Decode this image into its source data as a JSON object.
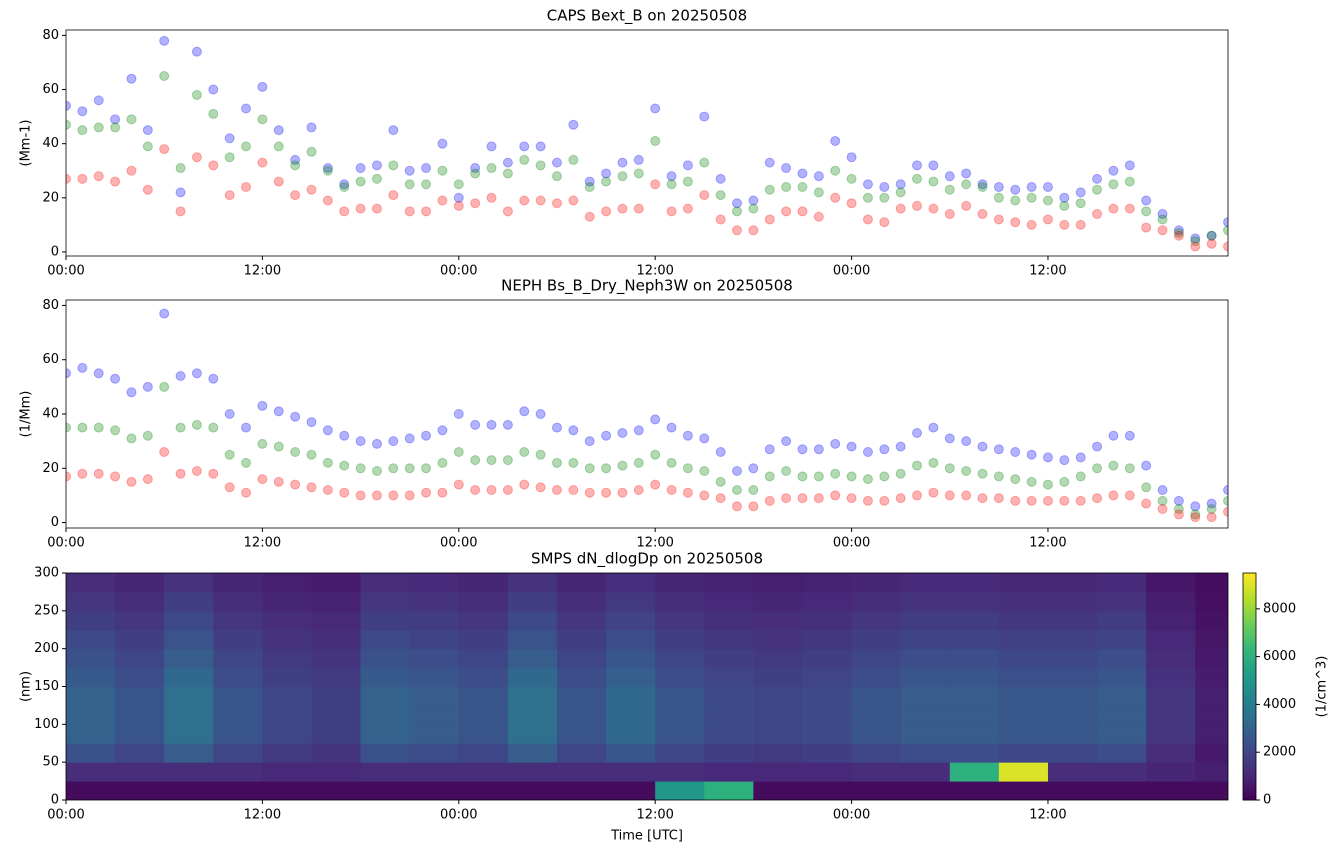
{
  "chart_data": [
    {
      "type": "scatter",
      "title": "CAPS Bext_B on 20250508",
      "ylabel": "(Mm-1)",
      "x": [
        0,
        1,
        2,
        3,
        4,
        5,
        6,
        7,
        8,
        9,
        10,
        11,
        12,
        13,
        14,
        15,
        16,
        17,
        18,
        19,
        20,
        21,
        22,
        23,
        24,
        25,
        26,
        27,
        28,
        29,
        30,
        31,
        32,
        33,
        34,
        35,
        36,
        37,
        38,
        39,
        40,
        41,
        42,
        43,
        44,
        45,
        46,
        47,
        48,
        49,
        50,
        51,
        52,
        53,
        54,
        55,
        56,
        57,
        58,
        59,
        60,
        61,
        62,
        63,
        64,
        65,
        66,
        67,
        68,
        69,
        70,
        71
      ],
      "series": [
        {
          "color": "#0000ff",
          "values": [
            54,
            52,
            56,
            49,
            64,
            45,
            78,
            22,
            74,
            60,
            42,
            53,
            61,
            45,
            34,
            46,
            31,
            25,
            31,
            32,
            45,
            30,
            31,
            40,
            20,
            31,
            39,
            33,
            39,
            39,
            33,
            47,
            26,
            29,
            33,
            34,
            53,
            28,
            32,
            50,
            27,
            18,
            19,
            33,
            31,
            29,
            28,
            41,
            35,
            25,
            24,
            25,
            32,
            32,
            28,
            29,
            25,
            24,
            23,
            24,
            24,
            20,
            22,
            27,
            30,
            32,
            19,
            14,
            8,
            5,
            6,
            11
          ]
        },
        {
          "color": "#008000",
          "values": [
            47,
            45,
            46,
            46,
            49,
            39,
            65,
            31,
            58,
            51,
            35,
            39,
            49,
            39,
            32,
            37,
            30,
            24,
            26,
            27,
            32,
            25,
            25,
            30,
            25,
            29,
            31,
            29,
            34,
            32,
            28,
            34,
            24,
            26,
            28,
            29,
            41,
            25,
            26,
            33,
            21,
            15,
            16,
            23,
            24,
            24,
            22,
            30,
            27,
            20,
            20,
            22,
            27,
            26,
            23,
            25,
            24,
            20,
            19,
            20,
            19,
            17,
            18,
            23,
            25,
            26,
            15,
            12,
            7,
            4,
            6,
            8
          ]
        },
        {
          "color": "#ff0000",
          "values": [
            27,
            27,
            28,
            26,
            30,
            23,
            38,
            15,
            35,
            32,
            21,
            24,
            33,
            26,
            21,
            23,
            19,
            15,
            16,
            16,
            21,
            15,
            15,
            19,
            17,
            18,
            20,
            15,
            19,
            19,
            18,
            19,
            13,
            15,
            16,
            16,
            25,
            15,
            16,
            21,
            12,
            8,
            8,
            12,
            15,
            15,
            13,
            20,
            18,
            12,
            11,
            16,
            17,
            16,
            14,
            17,
            14,
            12,
            11,
            10,
            12,
            10,
            10,
            14,
            16,
            16,
            9,
            8,
            6,
            2,
            3,
            2
          ]
        }
      ],
      "alpha": 0.3,
      "xlim": [
        0,
        71
      ],
      "ylim": [
        -1.5,
        82
      ],
      "yticks": [
        0,
        20,
        40,
        60,
        80
      ],
      "xticks": [
        {
          "value": 0,
          "label": "00:00"
        },
        {
          "value": 12,
          "label": "12:00"
        },
        {
          "value": 24,
          "label": "00:00"
        },
        {
          "value": 36,
          "label": "12:00"
        },
        {
          "value": 48,
          "label": "00:00"
        },
        {
          "value": 60,
          "label": "12:00"
        }
      ]
    },
    {
      "type": "scatter",
      "title": "NEPH Bs_B_Dry_Neph3W on 20250508",
      "ylabel": "(1/Mm)",
      "x": [
        0,
        1,
        2,
        3,
        4,
        5,
        6,
        7,
        8,
        9,
        10,
        11,
        12,
        13,
        14,
        15,
        16,
        17,
        18,
        19,
        20,
        21,
        22,
        23,
        24,
        25,
        26,
        27,
        28,
        29,
        30,
        31,
        32,
        33,
        34,
        35,
        36,
        37,
        38,
        39,
        40,
        41,
        42,
        43,
        44,
        45,
        46,
        47,
        48,
        49,
        50,
        51,
        52,
        53,
        54,
        55,
        56,
        57,
        58,
        59,
        60,
        61,
        62,
        63,
        64,
        65,
        66,
        67,
        68,
        69,
        70,
        71
      ],
      "series": [
        {
          "color": "#0000ff",
          "values": [
            55,
            57,
            55,
            53,
            48,
            50,
            77,
            54,
            55,
            53,
            40,
            35,
            43,
            41,
            39,
            37,
            34,
            32,
            30,
            29,
            30,
            31,
            32,
            34,
            40,
            36,
            36,
            36,
            41,
            40,
            35,
            34,
            30,
            32,
            33,
            34,
            38,
            35,
            32,
            31,
            26,
            19,
            20,
            27,
            30,
            27,
            27,
            29,
            28,
            26,
            27,
            28,
            33,
            35,
            31,
            30,
            28,
            27,
            26,
            25,
            24,
            23,
            24,
            28,
            32,
            32,
            21,
            12,
            8,
            6,
            7,
            12
          ]
        },
        {
          "color": "#008000",
          "values": [
            35,
            35,
            35,
            34,
            31,
            32,
            50,
            35,
            36,
            35,
            25,
            22,
            29,
            28,
            26,
            25,
            22,
            21,
            20,
            19,
            20,
            20,
            20,
            22,
            26,
            23,
            23,
            23,
            26,
            25,
            22,
            22,
            20,
            20,
            21,
            22,
            25,
            22,
            20,
            19,
            15,
            12,
            12,
            17,
            19,
            17,
            17,
            18,
            17,
            16,
            17,
            18,
            21,
            22,
            20,
            19,
            18,
            17,
            16,
            15,
            14,
            15,
            17,
            20,
            21,
            20,
            13,
            8,
            5,
            3,
            5,
            8
          ]
        },
        {
          "color": "#ff0000",
          "values": [
            17,
            18,
            18,
            17,
            15,
            16,
            26,
            18,
            19,
            18,
            13,
            11,
            16,
            15,
            14,
            13,
            12,
            11,
            10,
            10,
            10,
            10,
            11,
            11,
            14,
            12,
            12,
            12,
            14,
            13,
            12,
            12,
            11,
            11,
            11,
            12,
            14,
            12,
            11,
            10,
            9,
            6,
            6,
            8,
            9,
            9,
            9,
            10,
            9,
            8,
            8,
            9,
            10,
            11,
            10,
            10,
            9,
            9,
            8,
            8,
            8,
            8,
            8,
            9,
            10,
            10,
            7,
            5,
            3,
            2,
            2,
            4
          ]
        }
      ],
      "alpha": 0.3,
      "xlim": [
        0,
        71
      ],
      "ylim": [
        -2,
        82
      ],
      "yticks": [
        0,
        20,
        40,
        60,
        80
      ],
      "xticks": [
        {
          "value": 0,
          "label": "00:00"
        },
        {
          "value": 12,
          "label": "12:00"
        },
        {
          "value": 24,
          "label": "00:00"
        },
        {
          "value": 36,
          "label": "12:00"
        },
        {
          "value": 48,
          "label": "00:00"
        },
        {
          "value": 60,
          "label": "12:00"
        }
      ]
    },
    {
      "type": "heatmap",
      "title": "SMPS dN_dlogDp on 20250508",
      "ylabel": "(nm)",
      "xlabel": "Time [UTC]",
      "colormap": "viridis",
      "x_bins": [
        0,
        3,
        6,
        9,
        12,
        15,
        18,
        21,
        24,
        27,
        30,
        33,
        36,
        39,
        42,
        45,
        48,
        51,
        54,
        57,
        60,
        63,
        66,
        69,
        72
      ],
      "y_bins": [
        0,
        25,
        50,
        75,
        100,
        125,
        150,
        175,
        200,
        225,
        250,
        275,
        300
      ],
      "values": [
        [
          300,
          1200,
          2400,
          3000,
          3000,
          3000,
          2700,
          2400,
          2100,
          1800,
          1500,
          1200
        ],
        [
          300,
          1200,
          2000,
          2500,
          2500,
          2500,
          2250,
          2000,
          1750,
          1500,
          1250,
          1000
        ],
        [
          300,
          1200,
          2800,
          3500,
          3500,
          3500,
          3150,
          2800,
          2450,
          2100,
          1750,
          1400
        ],
        [
          300,
          1200,
          2000,
          2500,
          2500,
          2500,
          2250,
          2000,
          1750,
          1500,
          1250,
          1000
        ],
        [
          300,
          1100,
          1600,
          2000,
          2000,
          2000,
          1800,
          1600,
          1400,
          1200,
          1000,
          800
        ],
        [
          300,
          1100,
          1440,
          1800,
          1800,
          1800,
          1620,
          1440,
          1260,
          1080,
          900,
          720
        ],
        [
          300,
          1200,
          2400,
          3000,
          3000,
          3000,
          2700,
          2400,
          2100,
          1800,
          1500,
          1200
        ],
        [
          300,
          1200,
          2240,
          2800,
          2800,
          2800,
          2520,
          2240,
          1960,
          1680,
          1400,
          1120
        ],
        [
          300,
          1200,
          2000,
          2500,
          2500,
          2500,
          2250,
          2000,
          1750,
          1500,
          1250,
          1000
        ],
        [
          300,
          1200,
          2800,
          3500,
          3500,
          3500,
          3150,
          2800,
          2450,
          2100,
          1750,
          1400
        ],
        [
          300,
          1200,
          2000,
          2500,
          2500,
          2500,
          2250,
          2000,
          1750,
          1500,
          1250,
          1000
        ],
        [
          300,
          1200,
          2560,
          3200,
          3200,
          3200,
          2880,
          2560,
          2240,
          1920,
          1600,
          1280
        ],
        [
          5000,
          1200,
          2000,
          2500,
          2500,
          2500,
          2250,
          2000,
          1750,
          1500,
          1250,
          1000
        ],
        [
          6000,
          1100,
          1760,
          2200,
          2200,
          2200,
          1980,
          1760,
          1540,
          1320,
          1100,
          880
        ],
        [
          300,
          1100,
          1600,
          2000,
          2000,
          2000,
          1800,
          1600,
          1400,
          1200,
          1000,
          800
        ],
        [
          300,
          1100,
          1760,
          2200,
          2200,
          2200,
          1980,
          1760,
          1540,
          1320,
          1100,
          880
        ],
        [
          300,
          1200,
          2000,
          2500,
          2500,
          2500,
          2250,
          2000,
          1750,
          1500,
          1250,
          1000
        ],
        [
          300,
          1200,
          2240,
          2800,
          2800,
          2800,
          2520,
          2240,
          1960,
          1680,
          1400,
          1120
        ],
        [
          300,
          6000,
          2240,
          2800,
          2800,
          2800,
          2520,
          2240,
          1960,
          1680,
          1400,
          1120
        ],
        [
          300,
          9000,
          2080,
          2600,
          2600,
          2600,
          2340,
          2080,
          1820,
          1560,
          1300,
          1040
        ],
        [
          300,
          1200,
          2080,
          2600,
          2600,
          2600,
          2340,
          2080,
          1820,
          1560,
          1300,
          1040
        ],
        [
          300,
          1200,
          2240,
          2800,
          2800,
          2800,
          2520,
          2240,
          1960,
          1680,
          1400,
          1120
        ],
        [
          300,
          1000,
          1200,
          1500,
          1500,
          1500,
          1350,
          1200,
          1050,
          900,
          750,
          600
        ],
        [
          300,
          800,
          640,
          800,
          800,
          800,
          720,
          640,
          560,
          480,
          400,
          320
        ]
      ],
      "xlim": [
        0,
        71
      ],
      "ylim": [
        0,
        300
      ],
      "yticks": [
        0,
        50,
        100,
        150,
        200,
        250,
        300
      ],
      "xticks": [
        {
          "value": 0,
          "label": "00:00"
        },
        {
          "value": 12,
          "label": "12:00"
        },
        {
          "value": 24,
          "label": "00:00"
        },
        {
          "value": 36,
          "label": "12:00"
        },
        {
          "value": 48,
          "label": "00:00"
        },
        {
          "value": 60,
          "label": "12:00"
        }
      ],
      "zlim": [
        0,
        9500
      ],
      "zticks": [
        0,
        2000,
        4000,
        6000,
        8000
      ],
      "zlabel": "(1/cm^3)"
    }
  ]
}
